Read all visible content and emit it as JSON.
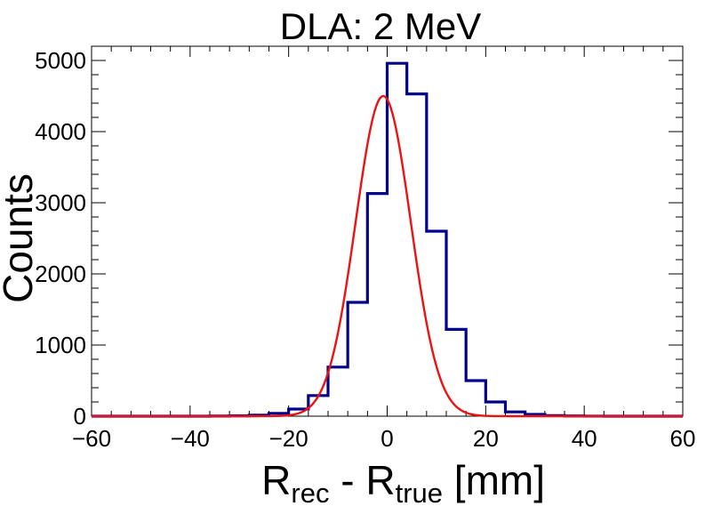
{
  "chart_data": {
    "type": "histogram",
    "title": "DLA: 2 MeV",
    "xlabel": {
      "main": "R",
      "sub1": "rec",
      "sep": " - ",
      "main2": "R",
      "sub2": "true",
      "unit": " [mm]"
    },
    "ylabel": "Counts",
    "xlim": [
      -60,
      60
    ],
    "ylim": [
      0,
      5200
    ],
    "xticks": [
      -60,
      -40,
      -20,
      0,
      20,
      40,
      60
    ],
    "xtick_labels": [
      "−60",
      "−40",
      "−20",
      "0",
      "20",
      "40",
      "60"
    ],
    "yticks": [
      0,
      1000,
      2000,
      3000,
      4000,
      5000
    ],
    "ytick_labels": [
      "0",
      "1000",
      "2000",
      "3000",
      "4000",
      "5000"
    ],
    "series": [
      {
        "name": "histogram",
        "style": "step",
        "color": "#00008b",
        "bin_edges": [
          -60,
          -56,
          -52,
          -48,
          -44,
          -40,
          -36,
          -32,
          -28,
          -24,
          -20,
          -16,
          -12,
          -8,
          -4,
          0,
          4,
          8,
          12,
          16,
          20,
          24,
          28,
          32,
          36,
          40,
          44,
          48,
          52,
          56,
          60
        ],
        "counts": [
          0,
          0,
          0,
          0,
          0,
          0,
          2,
          5,
          15,
          40,
          100,
          290,
          690,
          1600,
          3130,
          4960,
          4530,
          2600,
          1220,
          500,
          200,
          60,
          25,
          8,
          3,
          1,
          0,
          0,
          0,
          0
        ]
      },
      {
        "name": "gaussian fit",
        "style": "line",
        "color": "#ee1111",
        "function": "gaussian",
        "amplitude": 4500,
        "mean": -0.8,
        "sigma": 5.6
      }
    ]
  }
}
